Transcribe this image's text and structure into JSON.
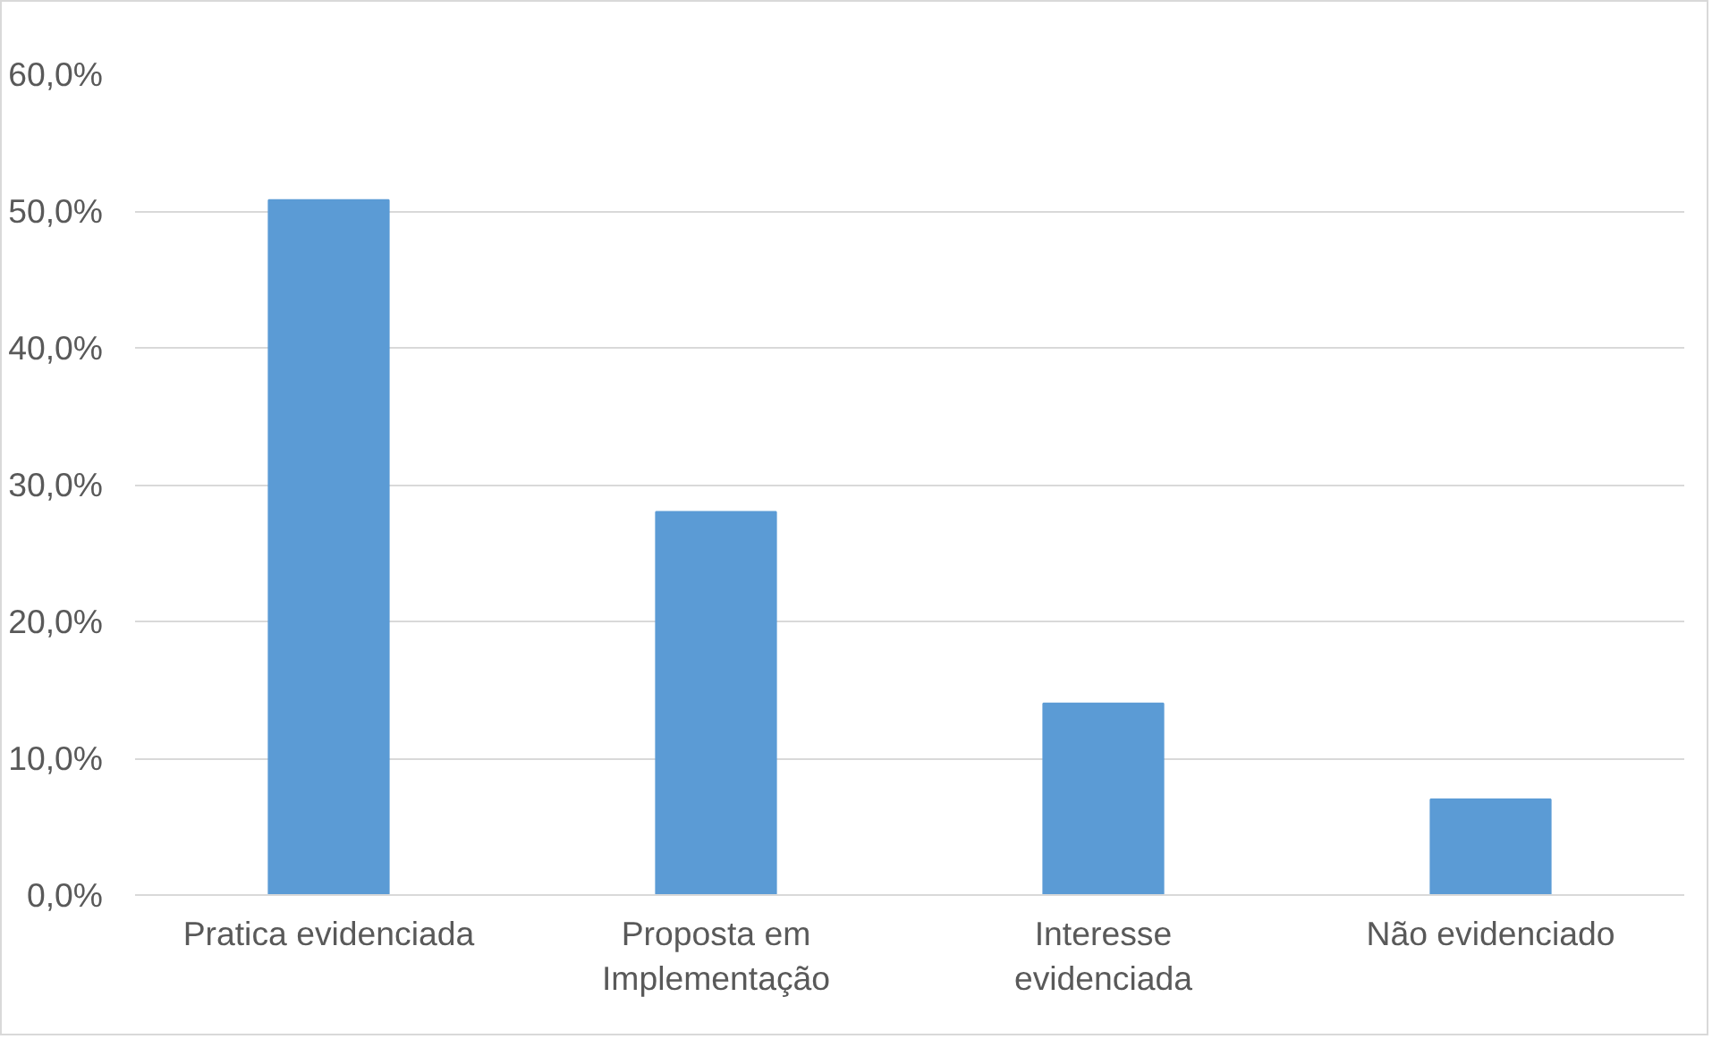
{
  "chart_data": {
    "type": "bar",
    "categories": [
      "Pratica evidenciada",
      "Proposta em\nImplementação",
      "Interesse\nevidenciada",
      "Não evidenciado"
    ],
    "values": [
      50.8,
      28.0,
      14.0,
      7.0
    ],
    "color": "#5b9bd5",
    "ylim": [
      0,
      60
    ],
    "yticks": [
      {
        "value": 0,
        "label": "0,0%"
      },
      {
        "value": 10,
        "label": "10,0%"
      },
      {
        "value": 20,
        "label": "20,0%"
      },
      {
        "value": 30,
        "label": "30,0%"
      },
      {
        "value": 40,
        "label": "40,0%"
      },
      {
        "value": 50,
        "label": "50,0%"
      },
      {
        "value": 60,
        "label": "60,0%"
      }
    ],
    "grid": "y"
  }
}
